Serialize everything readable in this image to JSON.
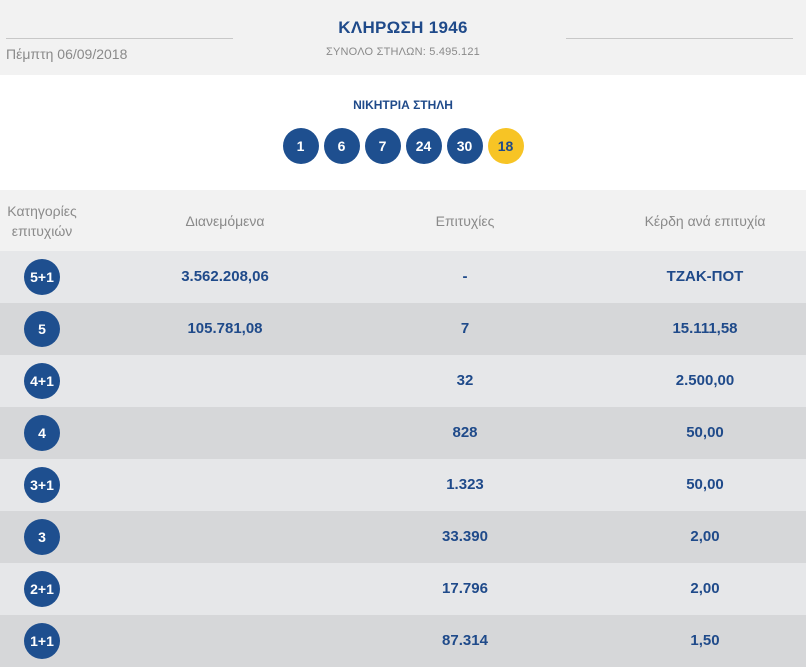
{
  "header": {
    "date": "Πέμπτη 06/09/2018",
    "title": "ΚΛΗΡΩΣΗ 1946",
    "total_columns": "ΣΥΝΟΛΟ ΣΤΗΛΩΝ: 5.495.121"
  },
  "winning": {
    "label": "ΝΙΚΗΤΡΙΑ ΣΤΗΛΗ",
    "numbers": [
      "1",
      "6",
      "7",
      "24",
      "30"
    ],
    "bonus": "18"
  },
  "table": {
    "headers": {
      "category": "Κατηγορίες επιτυχιών",
      "distributed": "Διανεμόμενα",
      "winners": "Επιτυχίες",
      "prize": "Κέρδη ανά επιτυχία"
    },
    "rows": [
      {
        "category": "5+1",
        "distributed": "3.562.208,06",
        "winners": "-",
        "prize": "ΤΖΑΚ-ΠΟΤ"
      },
      {
        "category": "5",
        "distributed": "105.781,08",
        "winners": "7",
        "prize": "15.111,58"
      },
      {
        "category": "4+1",
        "distributed": "",
        "winners": "32",
        "prize": "2.500,00"
      },
      {
        "category": "4",
        "distributed": "",
        "winners": "828",
        "prize": "50,00"
      },
      {
        "category": "3+1",
        "distributed": "",
        "winners": "1.323",
        "prize": "50,00"
      },
      {
        "category": "3",
        "distributed": "",
        "winners": "33.390",
        "prize": "2,00"
      },
      {
        "category": "2+1",
        "distributed": "",
        "winners": "17.796",
        "prize": "2,00"
      },
      {
        "category": "1+1",
        "distributed": "",
        "winners": "87.314",
        "prize": "1,50"
      }
    ]
  },
  "colors": {
    "ball": "#1e4f8f",
    "bonus_ball": "#f7c425",
    "text_primary": "#1f4a8a",
    "text_muted": "#8a8a8a",
    "row_light": "#e6e7e9",
    "row_dark": "#d6d7d9"
  }
}
